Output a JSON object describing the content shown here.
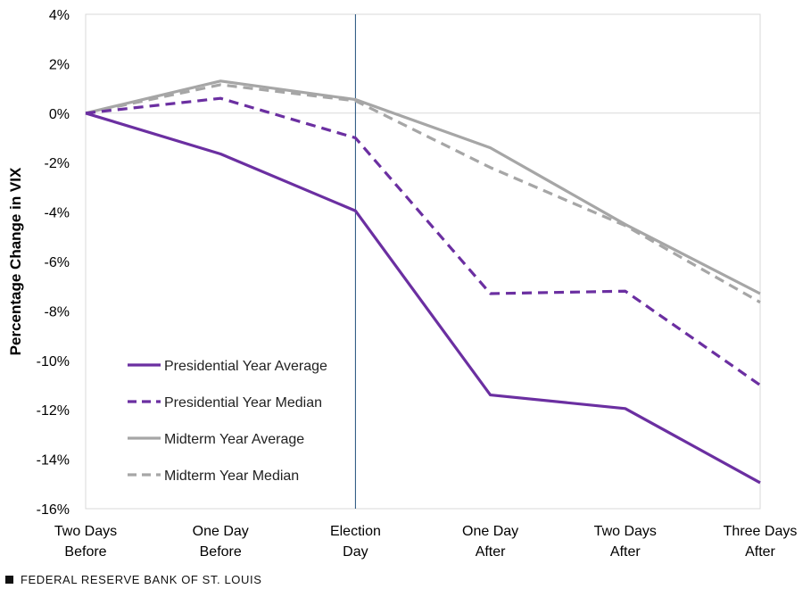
{
  "chart_data": {
    "type": "line",
    "title": "",
    "xlabel": "",
    "ylabel": "Percentage Change in VIX",
    "ylim": [
      -16,
      4
    ],
    "yticks": [
      4,
      2,
      0,
      -2,
      -4,
      -6,
      -8,
      -10,
      -12,
      -14,
      -16
    ],
    "ytick_labels": [
      "4%",
      "2%",
      "0%",
      "-2%",
      "-4%",
      "-6%",
      "-8%",
      "-10%",
      "-12%",
      "-14%",
      "-16%"
    ],
    "categories": [
      [
        "Two Days",
        "Before"
      ],
      [
        "One Day",
        "Before"
      ],
      [
        "Election",
        "Day"
      ],
      [
        "One Day",
        "After"
      ],
      [
        "Two Days",
        "After"
      ],
      [
        "Three Days",
        "After"
      ]
    ],
    "marker_line_index": 2,
    "legend_position": "lower-left",
    "series": [
      {
        "name": "Presidential Year Average",
        "color": "#6b2fa1",
        "dash": "solid",
        "values": [
          0,
          -1.65,
          -3.95,
          -11.4,
          -11.95,
          -14.95
        ]
      },
      {
        "name": "Presidential Year Median",
        "color": "#6b2fa1",
        "dash": "dashed",
        "values": [
          0,
          0.6,
          -1.0,
          -7.3,
          -7.2,
          -11.0
        ]
      },
      {
        "name": "Midterm Year Average",
        "color": "#a6a6a6",
        "dash": "solid",
        "values": [
          0,
          1.3,
          0.55,
          -1.4,
          -4.5,
          -7.3
        ]
      },
      {
        "name": "Midterm Year Median",
        "color": "#a6a6a6",
        "dash": "dashed",
        "values": [
          0,
          1.15,
          0.5,
          -2.2,
          -4.55,
          -7.65
        ]
      }
    ]
  },
  "footer": {
    "source": "FEDERAL RESERVE BANK OF ST. LOUIS"
  }
}
